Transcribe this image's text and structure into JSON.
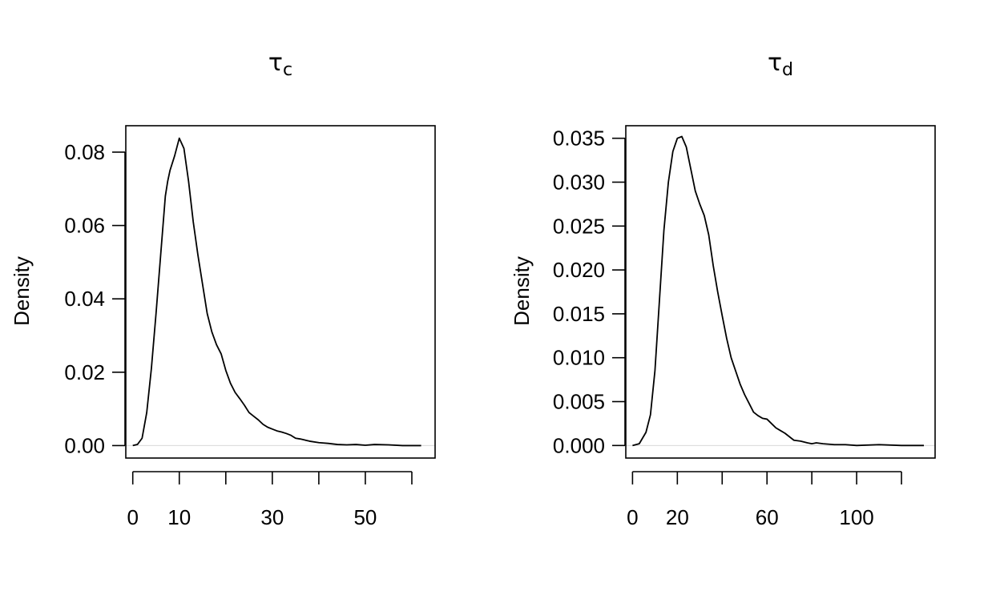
{
  "chart_data": [
    {
      "type": "line",
      "title": "τ",
      "title_subscript": "c",
      "xlabel": "",
      "ylabel": "Density",
      "xlim": [
        -1.5,
        65
      ],
      "ylim": [
        -0.0034,
        0.0872
      ],
      "xticks": [
        0,
        10,
        20,
        30,
        40,
        50,
        60
      ],
      "xtick_labels": [
        {
          "value": 0,
          "label": "0"
        },
        {
          "value": 10,
          "label": "10"
        },
        {
          "value": 30,
          "label": "30"
        },
        {
          "value": 50,
          "label": "50"
        }
      ],
      "yticks": [
        {
          "value": 0.0,
          "label": "0.00"
        },
        {
          "value": 0.02,
          "label": "0.02"
        },
        {
          "value": 0.04,
          "label": "0.04"
        },
        {
          "value": 0.06,
          "label": "0.06"
        },
        {
          "value": 0.08,
          "label": "0.08"
        }
      ],
      "grid": false,
      "baseline": 0,
      "series": [
        {
          "x": [
            0,
            1,
            2,
            3,
            4,
            5,
            6,
            7,
            7.5,
            8,
            9,
            10,
            11,
            12,
            13,
            14,
            15,
            16,
            17,
            18,
            19,
            20,
            21,
            22,
            23,
            24,
            25,
            26,
            27,
            28,
            29,
            30,
            31,
            32,
            33,
            34,
            35,
            36,
            37,
            38,
            40,
            42,
            44,
            46,
            48,
            50,
            52,
            55,
            58,
            62
          ],
          "values": [
            0,
            0.0003,
            0.002,
            0.009,
            0.021,
            0.036,
            0.052,
            0.068,
            0.072,
            0.075,
            0.079,
            0.0838,
            0.081,
            0.072,
            0.061,
            0.052,
            0.044,
            0.036,
            0.031,
            0.0275,
            0.025,
            0.0205,
            0.017,
            0.0145,
            0.0128,
            0.011,
            0.009,
            0.008,
            0.007,
            0.0058,
            0.005,
            0.0045,
            0.004,
            0.0037,
            0.0033,
            0.0028,
            0.002,
            0.0018,
            0.0015,
            0.0012,
            0.0008,
            0.0006,
            0.0003,
            0.0002,
            0.0003,
            0.0001,
            0.0003,
            0.0002,
            0,
            0
          ]
        }
      ]
    },
    {
      "type": "line",
      "title": "τ",
      "title_subscript": "d",
      "xlabel": "",
      "ylabel": "Density",
      "xlim": [
        -3,
        135
      ],
      "ylim": [
        -0.00143,
        0.03643
      ],
      "xticks": [
        0,
        20,
        40,
        60,
        80,
        100,
        120
      ],
      "xtick_labels": [
        {
          "value": 0,
          "label": "0"
        },
        {
          "value": 20,
          "label": "20"
        },
        {
          "value": 60,
          "label": "60"
        },
        {
          "value": 100,
          "label": "100"
        }
      ],
      "yticks": [
        {
          "value": 0.0,
          "label": "0.000"
        },
        {
          "value": 0.005,
          "label": "0.005"
        },
        {
          "value": 0.01,
          "label": "0.010"
        },
        {
          "value": 0.015,
          "label": "0.015"
        },
        {
          "value": 0.02,
          "label": "0.020"
        },
        {
          "value": 0.025,
          "label": "0.025"
        },
        {
          "value": 0.03,
          "label": "0.030"
        },
        {
          "value": 0.035,
          "label": "0.035"
        }
      ],
      "grid": false,
      "baseline": 0,
      "series": [
        {
          "x": [
            0,
            3,
            6,
            8,
            10,
            12,
            14,
            16,
            18,
            20,
            22,
            24,
            26,
            28,
            30,
            32,
            34,
            36,
            38,
            40,
            42,
            44,
            46,
            48,
            50,
            52,
            54,
            56,
            58,
            60,
            62,
            64,
            66,
            68,
            70,
            72,
            75,
            78,
            80,
            82,
            85,
            90,
            95,
            100,
            110,
            120,
            130
          ],
          "values": [
            0,
            0.0002,
            0.0015,
            0.0035,
            0.0085,
            0.0165,
            0.0245,
            0.03,
            0.0335,
            0.035,
            0.0352,
            0.034,
            0.0315,
            0.029,
            0.0275,
            0.0262,
            0.024,
            0.0205,
            0.0175,
            0.0148,
            0.0122,
            0.01,
            0.0085,
            0.007,
            0.0058,
            0.0048,
            0.0038,
            0.0034,
            0.0031,
            0.003,
            0.0025,
            0.002,
            0.0017,
            0.0014,
            0.001,
            0.0006,
            0.0005,
            0.0003,
            0.0002,
            0.0003,
            0.0002,
            0.0001,
            0.0001,
            0,
            0.0001,
            0,
            0
          ]
        }
      ]
    }
  ]
}
